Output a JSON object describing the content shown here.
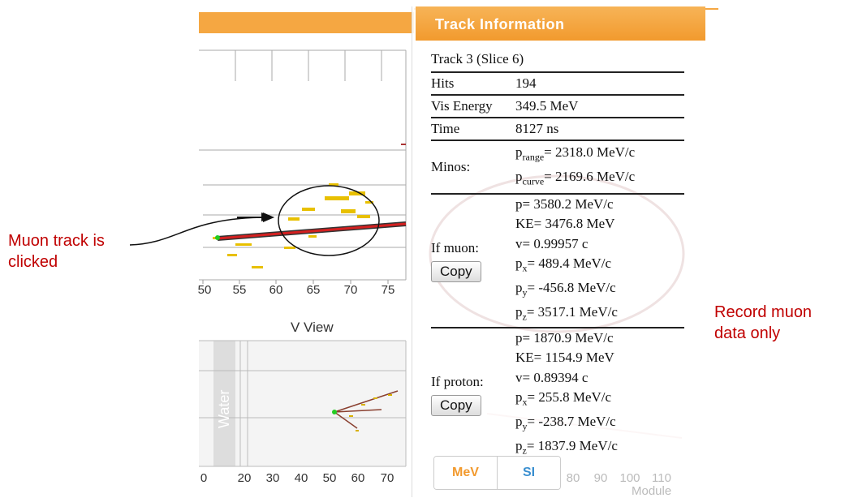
{
  "background": {
    "top_axis_ticks": [
      "50",
      "55",
      "60",
      "65",
      "70",
      "75"
    ],
    "view_title": "V View",
    "region_label": "Water",
    "bottom_axis_ticks": [
      "0",
      "20",
      "30",
      "40",
      "50",
      "60",
      "70"
    ],
    "right_axis_ticks": [
      "80",
      "90",
      "100",
      "110"
    ],
    "axis_title": "Module"
  },
  "panel": {
    "title": "Track Information",
    "track": "Track 3 (Slice 6)",
    "rows": [
      {
        "label": "Hits",
        "value": "194"
      },
      {
        "label": "Vis Energy",
        "value": "349.5 MeV"
      },
      {
        "label": "Time",
        "value": "8127 ns"
      }
    ],
    "minos": {
      "label": "Minos:",
      "items": [
        {
          "symbol": "p",
          "sub": "range",
          "value": "= 2318.0 MeV/c"
        },
        {
          "symbol": "p",
          "sub": "curve",
          "value": "= 2169.6 MeV/c"
        }
      ]
    },
    "hypotheses": [
      {
        "label": "If muon:",
        "button": "Copy",
        "lines": [
          {
            "text": "p= 3580.2 MeV/c"
          },
          {
            "text": "KE= 3476.8 MeV"
          },
          {
            "text": "v= 0.99957 c"
          },
          {
            "symbol": "p",
            "sub": "x",
            "value": "= 489.4 MeV/c"
          },
          {
            "symbol": "p",
            "sub": "y",
            "value": "= -456.8 MeV/c"
          },
          {
            "symbol": "p",
            "sub": "z",
            "value": "= 3517.1 MeV/c"
          }
        ]
      },
      {
        "label": "If proton:",
        "button": "Copy",
        "lines": [
          {
            "text": "p= 1870.9 MeV/c"
          },
          {
            "text": "KE= 1154.9 MeV"
          },
          {
            "text": "v= 0.89394 c"
          },
          {
            "symbol": "p",
            "sub": "x",
            "value": "= 255.8 MeV/c"
          },
          {
            "symbol": "p",
            "sub": "y",
            "value": "= -238.7 MeV/c"
          },
          {
            "symbol": "p",
            "sub": "z",
            "value": "= 1837.9 MeV/c"
          }
        ]
      }
    ],
    "units": [
      "MeV",
      "SI"
    ]
  },
  "annotations": [
    {
      "lines": [
        "Muon track is",
        "clicked"
      ]
    },
    {
      "lines": [
        "Record muon",
        "data only"
      ]
    }
  ]
}
